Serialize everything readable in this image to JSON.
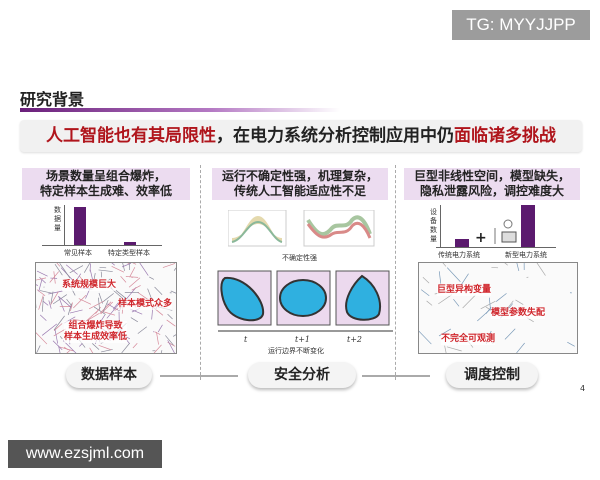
{
  "watermark_top": "TG: MYYJJPP",
  "watermark_bottom": "www.ezsjml.com",
  "section_title": "研究背景",
  "banner": {
    "part1": "人工智能也有其局限性",
    "part2": "，在电力系统分析控制应用中仍",
    "part3": "面临诸多挑战"
  },
  "colors": {
    "accent_purple": "#5b1a6e",
    "red": "#b0151c",
    "header_bg": "#ecdcf0"
  },
  "columns": [
    {
      "heading_line1": "场景数量呈组合爆炸，",
      "heading_line2": "特定样本生成难、效率低",
      "chart": {
        "ylabel": "数据量",
        "categories": [
          "常见样本",
          "特定类型样本"
        ],
        "values": [
          1.0,
          0.08
        ]
      },
      "labels": [
        "系统规模巨大",
        "样本模式众多",
        "组合爆炸导致\n样本生成效率低"
      ],
      "pill": "数据样本"
    },
    {
      "heading_line1": "运行不确定性强，机理复杂，",
      "heading_line2": "传统人工智能适应性不足",
      "caption1": "不确定性强",
      "time_labels": [
        "t",
        "t+1",
        "t+2"
      ],
      "caption2": "运行边界不断变化",
      "pill": "安全分析"
    },
    {
      "heading_line1": "巨型非线性空间，模型缺失，",
      "heading_line2": "隐私泄露风险，调控难度大",
      "chart": {
        "ylabel": "设备数量",
        "categories": [
          "传统电力系统",
          "新型电力系统"
        ],
        "values": [
          0.2,
          1.0
        ]
      },
      "plus": "+",
      "labels": [
        "巨型异构变量",
        "模型参数失配",
        "不完全可观测"
      ],
      "pill": "调度控制"
    }
  ],
  "page_number": "4"
}
